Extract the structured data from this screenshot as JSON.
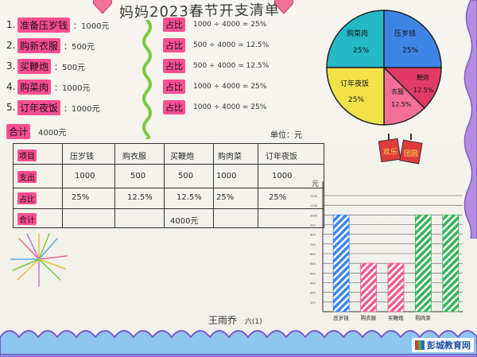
{
  "title": "妈妈2023春节开支清单",
  "items": [
    {
      "no": "1.",
      "label": "准备压岁钱",
      "amount": "：1000元"
    },
    {
      "no": "2.",
      "label": "购新衣服",
      "amount": "：500元"
    },
    {
      "no": "3.",
      "label": "买鞭炮",
      "amount": "：500元"
    },
    {
      "no": "4.",
      "label": "购菜肉",
      "amount": "：1000元"
    },
    {
      "no": "5.",
      "label": "订年夜饭",
      "amount": "：1000元"
    }
  ],
  "total": {
    "label": "合计",
    "amount": "4000元"
  },
  "ratios": [
    {
      "label": "占比",
      "formula": "1000 ÷ 4000 = 25%"
    },
    {
      "label": "占比",
      "formula": "500 ÷ 4000 = 12.5%"
    },
    {
      "label": "占比",
      "formula": "500 ÷ 4000 = 12.5%"
    },
    {
      "label": "占比",
      "formula": "1000 ÷ 4000 = 25%"
    },
    {
      "label": "占比",
      "formula": "1000 ÷ 4000 = 25%"
    }
  ],
  "pie": {
    "slices": [
      {
        "label": "购菜肉",
        "pct": "25%",
        "color": "#25b9c6"
      },
      {
        "label": "压岁钱",
        "pct": "25%",
        "color": "#3e85e6"
      },
      {
        "label": "鞭炮",
        "pct": "12.5%",
        "color": "#e23a67"
      },
      {
        "label": "衣服",
        "pct": "12.5%",
        "color": "#f56f9a"
      },
      {
        "label": "订年夜饭",
        "pct": "25%",
        "color": "#f2e24a"
      }
    ]
  },
  "stamp": {
    "left": "欢乐",
    "right": "团圆"
  },
  "table": {
    "unit": "单位：元",
    "headers": [
      "项目",
      "压岁钱",
      "购衣服",
      "买鞭炮",
      "购肉菜",
      "订年夜饭"
    ],
    "rows": [
      {
        "label": "支出",
        "values": [
          "1000",
          "500",
          "500",
          "1000",
          "1000"
        ]
      },
      {
        "label": "占比",
        "values": [
          "25%",
          "12.5%",
          "12.5%",
          "25%",
          "25%"
        ]
      },
      {
        "label": "合计",
        "values": [
          "",
          "",
          "4000元",
          "",
          ""
        ]
      }
    ]
  },
  "chart_data": {
    "type": "bar",
    "categories": [
      "压岁钱",
      "购衣服",
      "买鞭炮",
      "购肉菜",
      "订年夜饭"
    ],
    "values": [
      1000,
      500,
      500,
      1000,
      1000
    ],
    "ylabel": "元",
    "ylim": [
      0,
      1200
    ],
    "yticks": [
      100,
      200,
      300,
      400,
      500,
      600,
      700,
      800,
      900,
      1000,
      1100,
      1200
    ],
    "colors": [
      "#3d86e8",
      "#ef5b8e",
      "#ef5b8e",
      "#38b35a",
      "#38b35a"
    ],
    "visible_labels": [
      "压岁钱",
      "购衣服",
      "买鞭炮",
      "购肉菜"
    ]
  },
  "signature": {
    "name": "王雨乔",
    "cls": "六(1)"
  },
  "logo": "彭城教育网",
  "colors": {
    "highlight": "#ff4f92",
    "border_purple": "#9b6cd4",
    "border_blue": "#7fb9ea",
    "wavy_green": "#7ac943"
  }
}
